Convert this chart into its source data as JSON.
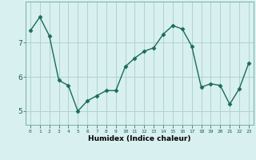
{
  "x": [
    0,
    1,
    2,
    3,
    4,
    5,
    6,
    7,
    8,
    9,
    10,
    11,
    12,
    13,
    14,
    15,
    16,
    17,
    18,
    19,
    20,
    21,
    22,
    23
  ],
  "y": [
    7.35,
    7.75,
    7.2,
    5.9,
    5.75,
    5.0,
    5.3,
    5.45,
    5.6,
    5.6,
    6.3,
    6.55,
    6.75,
    6.85,
    7.25,
    7.5,
    7.4,
    6.9,
    5.7,
    5.8,
    5.75,
    5.2,
    5.65,
    6.4
  ],
  "line_color": "#1a6b5a",
  "marker": "D",
  "marker_size": 2.5,
  "bg_color": "#d8f0ef",
  "grid_color": "#aacece",
  "xlabel": "Humidex (Indice chaleur)",
  "yticks": [
    5,
    6,
    7
  ],
  "xtick_labels": [
    "0",
    "1",
    "2",
    "3",
    "4",
    "5",
    "6",
    "7",
    "8",
    "9",
    "10",
    "11",
    "12",
    "13",
    "14",
    "15",
    "16",
    "17",
    "18",
    "19",
    "20",
    "21",
    "22",
    "23"
  ],
  "ylim": [
    4.6,
    8.2
  ],
  "xlim": [
    -0.5,
    23.5
  ]
}
